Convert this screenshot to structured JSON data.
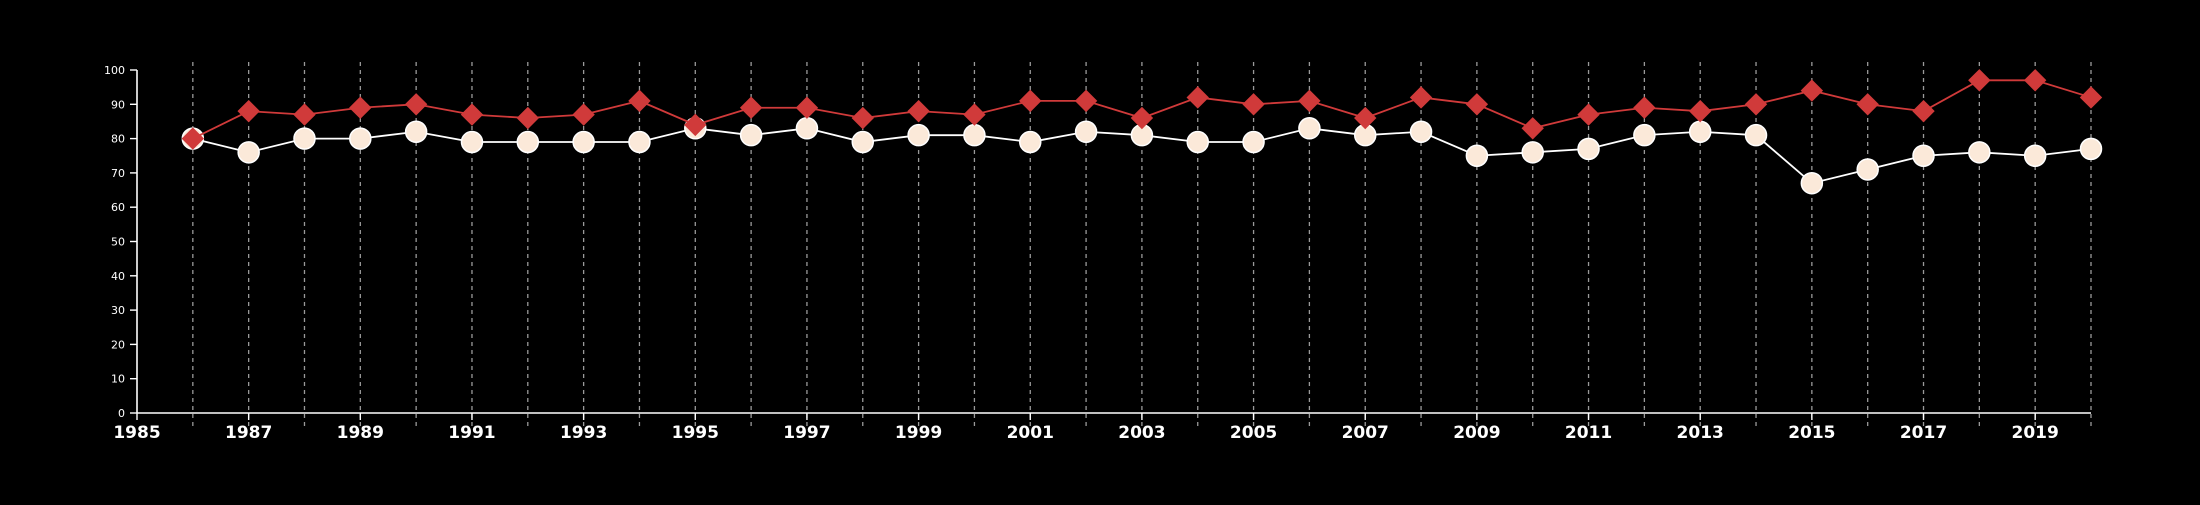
{
  "chart_data": {
    "type": "line",
    "title": "",
    "xlabel": "",
    "ylabel": "",
    "x": [
      1986,
      1987,
      1988,
      1989,
      1990,
      1991,
      1992,
      1993,
      1994,
      1995,
      1996,
      1997,
      1998,
      1999,
      2000,
      2001,
      2002,
      2003,
      2004,
      2005,
      2006,
      2007,
      2008,
      2009,
      2010,
      2011,
      2012,
      2013,
      2014,
      2015,
      2016,
      2017,
      2018,
      2019,
      2020
    ],
    "xlim": [
      1985,
      2020
    ],
    "ylim": [
      0,
      100
    ],
    "x_ticks": [
      "1985",
      "1987",
      "1989",
      "1991",
      "1993",
      "1995",
      "1997",
      "1999",
      "2001",
      "2003",
      "2005",
      "2007",
      "2009",
      "2011",
      "2013",
      "2015",
      "2017",
      "2019"
    ],
    "y_ticks": [
      "0",
      "10",
      "20",
      "30",
      "40",
      "50",
      "60",
      "70",
      "80",
      "90",
      "100"
    ],
    "grid": "vertical dashed lines at each year",
    "legend": "none",
    "series": [
      {
        "color": "#d03a3a",
        "marker": "diamond",
        "values": [
          80,
          88,
          87,
          89,
          90,
          87,
          86,
          87,
          91,
          84,
          89,
          89,
          86,
          88,
          87,
          91,
          91,
          86,
          92,
          90,
          91,
          86,
          92,
          90,
          83,
          87,
          89,
          88,
          90,
          94,
          90,
          88,
          97,
          97,
          92
        ]
      },
      {
        "color": "#fbe9d9",
        "marker": "circle",
        "values": [
          80,
          76,
          80,
          80,
          82,
          79,
          79,
          79,
          79,
          83,
          81,
          83,
          79,
          81,
          81,
          79,
          82,
          81,
          79,
          79,
          83,
          81,
          82,
          75,
          76,
          77,
          81,
          82,
          81,
          67,
          71,
          75,
          76,
          75,
          77
        ]
      }
    ]
  }
}
